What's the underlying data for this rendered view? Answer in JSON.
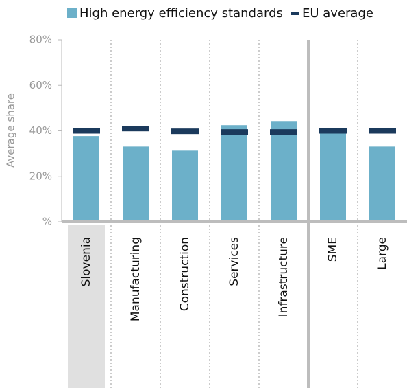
{
  "chart_data": {
    "type": "bar",
    "y_label": "Average share",
    "categories": [
      "Slovenia",
      "Manufacturing",
      "Construction",
      "Services",
      "Infrastructure",
      "SME",
      "Large"
    ],
    "series": [
      {
        "name": "High energy efficiency standards",
        "color": "#6cb0c9",
        "values": [
          37.7,
          33.1,
          31.3,
          42.5,
          44.3,
          39,
          33.1
        ]
      },
      {
        "name": "EU average",
        "color": "#1b3a5c",
        "values": [
          40,
          41,
          39.8,
          39.5,
          39.5,
          40,
          40
        ]
      }
    ],
    "ylim": [
      0,
      80
    ],
    "yticks": [
      {
        "value": 0,
        "label": "%"
      },
      {
        "value": 20,
        "label": "20%"
      },
      {
        "value": 40,
        "label": "40%"
      },
      {
        "value": 60,
        "label": "60%"
      },
      {
        "value": 80,
        "label": "80%"
      }
    ],
    "highlight_color": "#e0e0e0"
  }
}
